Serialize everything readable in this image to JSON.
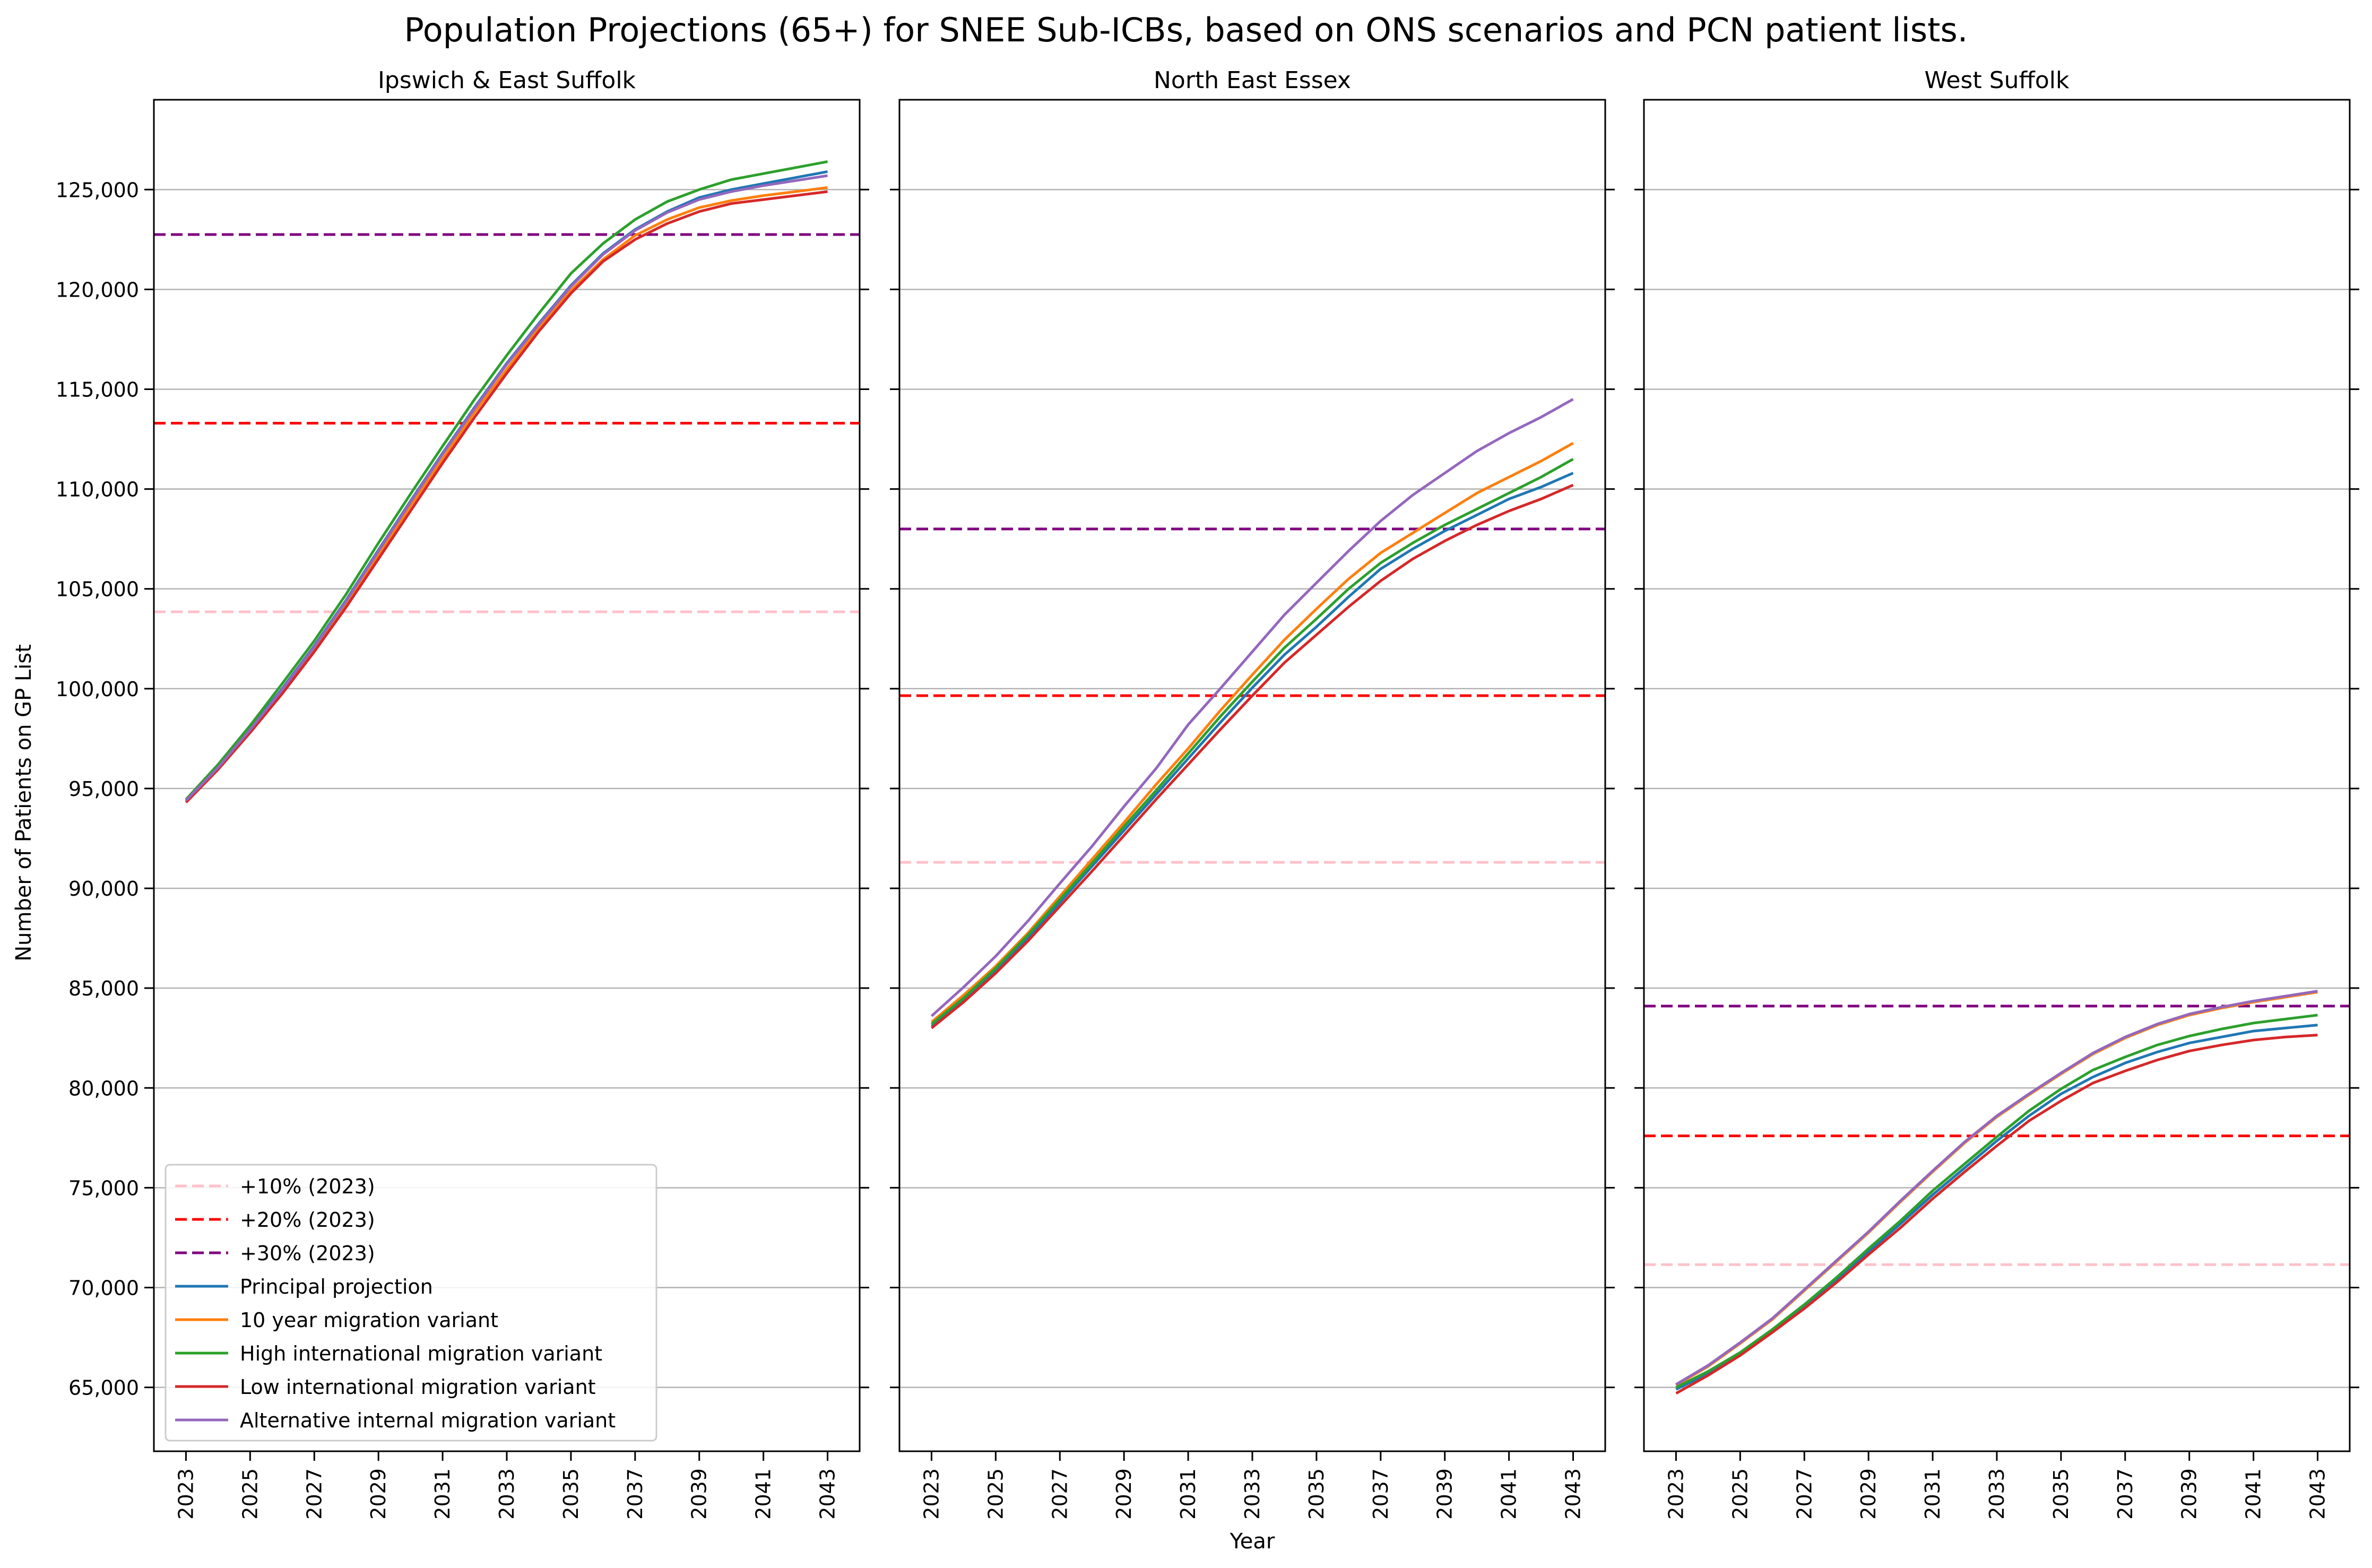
{
  "chart_data": {
    "type": "line",
    "title": "Population Projections (65+) for SNEE Sub-ICBs, based on ONS scenarios and PCN patient lists.",
    "xlabel": "Year",
    "ylabel": "Number of Patients on GP List",
    "x": [
      2023,
      2024,
      2025,
      2026,
      2027,
      2028,
      2029,
      2030,
      2031,
      2032,
      2033,
      2034,
      2035,
      2036,
      2037,
      2038,
      2039,
      2040,
      2041,
      2042,
      2043
    ],
    "xticks": [
      2023,
      2025,
      2027,
      2029,
      2031,
      2033,
      2035,
      2037,
      2039,
      2041,
      2043
    ],
    "xlim": [
      2022,
      2044
    ],
    "ylim": [
      61800,
      129500
    ],
    "yticks": [
      65000,
      70000,
      75000,
      80000,
      85000,
      90000,
      95000,
      100000,
      105000,
      110000,
      115000,
      120000,
      125000
    ],
    "ytick_labels": [
      "65,000",
      "70,000",
      "75,000",
      "80,000",
      "85,000",
      "90,000",
      "95,000",
      "100,000",
      "105,000",
      "110,000",
      "115,000",
      "120,000",
      "125,000"
    ],
    "grid": "horizontal",
    "legend_position": "lower-left",
    "colors": {
      "ref_10": "#ffc0cb",
      "ref_20": "#ff0000",
      "ref_30": "#800080",
      "principal": "#1f77b4",
      "ten_year": "#ff7f0e",
      "high": "#2ca02c",
      "low": "#d62728",
      "alt": "#9467bd"
    },
    "legend": [
      {
        "key": "ref_10",
        "label": "+10% (2023)",
        "style": "dashed"
      },
      {
        "key": "ref_20",
        "label": "+20% (2023)",
        "style": "dashed"
      },
      {
        "key": "ref_30",
        "label": "+30% (2023)",
        "style": "dashed"
      },
      {
        "key": "principal",
        "label": "Principal projection",
        "style": "solid"
      },
      {
        "key": "ten_year",
        "label": "10 year migration variant",
        "style": "solid"
      },
      {
        "key": "high",
        "label": "High international migration variant",
        "style": "solid"
      },
      {
        "key": "low",
        "label": "Low international migration variant",
        "style": "solid"
      },
      {
        "key": "alt",
        "label": "Alternative internal migration variant",
        "style": "solid"
      }
    ],
    "panels": [
      {
        "title": "Ipswich & East Suffolk",
        "refs": {
          "ref_10": 103850,
          "ref_20": 113300,
          "ref_30": 122750
        },
        "series": {
          "principal": [
            94400,
            96100,
            98000,
            100000,
            102150,
            104450,
            106950,
            109400,
            111800,
            114100,
            116300,
            118300,
            120200,
            121800,
            123000,
            123900,
            124600,
            125000,
            125300,
            125600,
            125900
          ],
          "ten_year": [
            94350,
            96000,
            97900,
            99850,
            101950,
            104250,
            106700,
            109150,
            111500,
            113850,
            116000,
            118100,
            119950,
            121500,
            122700,
            123500,
            124100,
            124450,
            124700,
            124900,
            125100
          ],
          "high": [
            94450,
            96200,
            98150,
            100250,
            102400,
            104750,
            107300,
            109750,
            112150,
            114500,
            116700,
            118800,
            120800,
            122300,
            123500,
            124400,
            125000,
            125500,
            125800,
            126100,
            126400
          ],
          "low": [
            94300,
            95950,
            97800,
            99750,
            101850,
            104100,
            106500,
            108900,
            111300,
            113600,
            115800,
            117900,
            119800,
            121400,
            122500,
            123300,
            123900,
            124300,
            124500,
            124700,
            124900
          ],
          "alt": [
            94400,
            96050,
            97950,
            99950,
            102100,
            104400,
            106900,
            109350,
            111750,
            114050,
            116250,
            118250,
            120150,
            121750,
            122950,
            123850,
            124500,
            124900,
            125200,
            125450,
            125700
          ]
        }
      },
      {
        "title": "North East Essex",
        "refs": {
          "ref_10": 91300,
          "ref_20": 99650,
          "ref_30": 108000
        },
        "series": {
          "principal": [
            83100,
            84400,
            85900,
            87500,
            89300,
            91100,
            92900,
            94700,
            96500,
            98300,
            100050,
            101700,
            103100,
            104600,
            106000,
            107000,
            107900,
            108700,
            109500,
            110100,
            110800
          ],
          "ten_year": [
            83300,
            84650,
            86100,
            87750,
            89600,
            91450,
            93300,
            95200,
            97000,
            98900,
            100700,
            102450,
            104000,
            105500,
            106800,
            107800,
            108800,
            109800,
            110600,
            111400,
            112300
          ],
          "high": [
            83200,
            84500,
            86000,
            87650,
            89450,
            91250,
            93100,
            94900,
            96750,
            98600,
            100350,
            102050,
            103500,
            105000,
            106300,
            107300,
            108200,
            109000,
            109800,
            110600,
            111500
          ],
          "low": [
            83000,
            84300,
            85750,
            87350,
            89100,
            90850,
            92650,
            94450,
            96200,
            97950,
            99650,
            101300,
            102700,
            104100,
            105400,
            106500,
            107400,
            108200,
            108900,
            109500,
            110200
          ],
          "alt": [
            83600,
            85050,
            86600,
            88350,
            90250,
            92100,
            94100,
            96000,
            98200,
            100000,
            101850,
            103700,
            105300,
            106900,
            108400,
            109700,
            110800,
            111900,
            112800,
            113600,
            114500
          ]
        }
      },
      {
        "title": "West Suffolk",
        "refs": {
          "ref_10": 71150,
          "ref_20": 77600,
          "ref_30": 84100
        },
        "series": {
          "principal": [
            64900,
            65700,
            66650,
            67800,
            69050,
            70400,
            71800,
            73200,
            74650,
            76000,
            77350,
            78600,
            79700,
            80550,
            81250,
            81800,
            82250,
            82550,
            82850,
            83000,
            83150
          ],
          "ten_year": [
            65100,
            66050,
            67200,
            68400,
            69850,
            71300,
            72750,
            74300,
            75800,
            77250,
            78550,
            79650,
            80700,
            81700,
            82500,
            83150,
            83650,
            84000,
            84300,
            84550,
            84800
          ],
          "high": [
            65000,
            65800,
            66750,
            67900,
            69150,
            70500,
            71950,
            73350,
            74850,
            76200,
            77550,
            78850,
            79950,
            80900,
            81550,
            82150,
            82600,
            82950,
            83250,
            83450,
            83650
          ],
          "low": [
            64700,
            65600,
            66600,
            67750,
            68950,
            70250,
            71650,
            73000,
            74450,
            75800,
            77100,
            78350,
            79350,
            80250,
            80850,
            81400,
            81850,
            82150,
            82400,
            82550,
            82650
          ],
          "alt": [
            65150,
            66100,
            67250,
            68450,
            69900,
            71350,
            72800,
            74350,
            75850,
            77300,
            78600,
            79700,
            80750,
            81750,
            82550,
            83200,
            83700,
            84050,
            84350,
            84600,
            84850
          ]
        }
      }
    ]
  }
}
